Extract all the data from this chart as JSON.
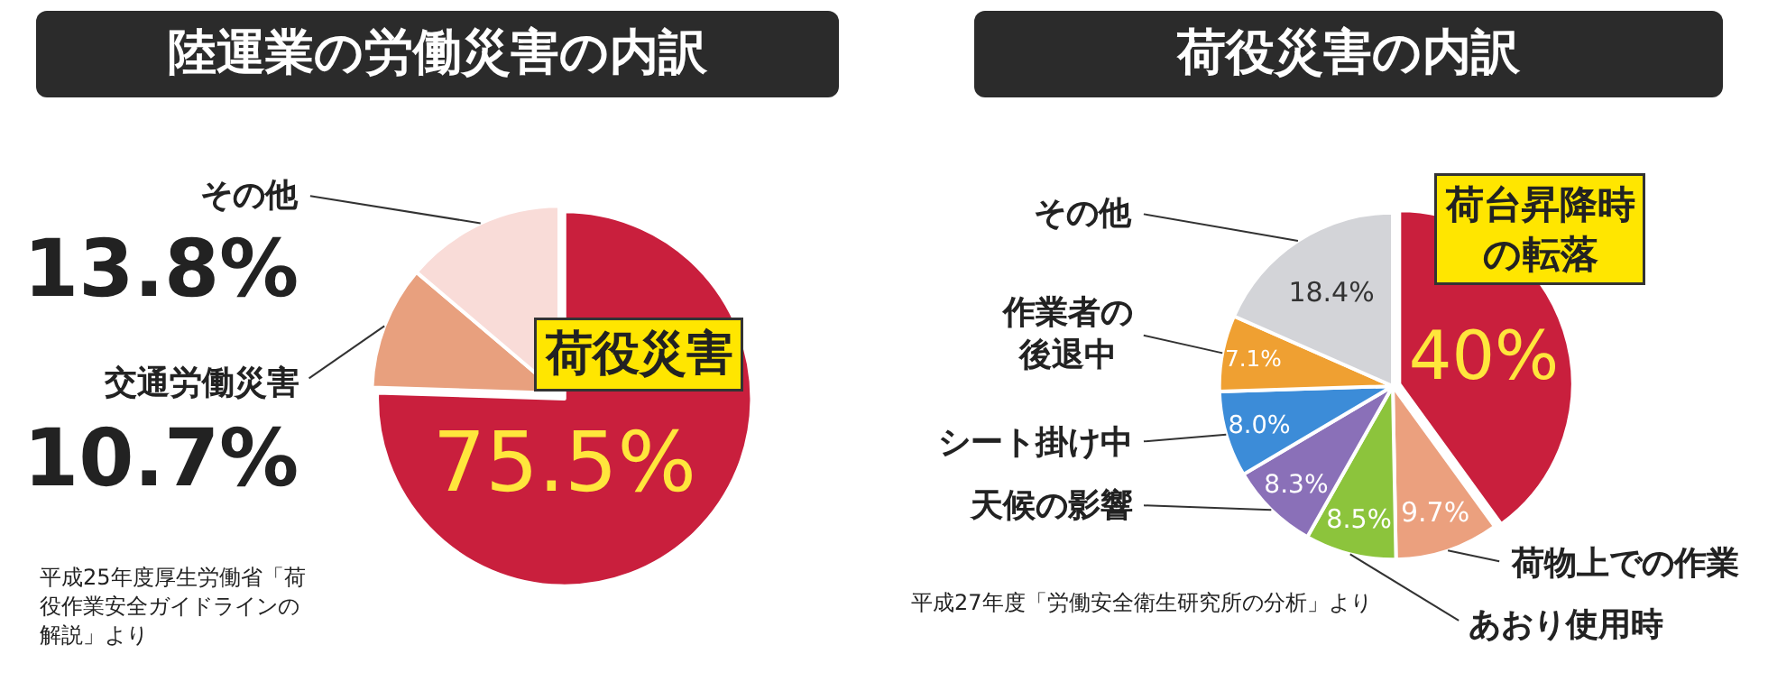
{
  "chart_data": [
    {
      "type": "pie",
      "title": "陸運業の労働災害の内訳",
      "categories": [
        "荷役災害",
        "交通労働災害",
        "その他"
      ],
      "values": [
        75.5,
        10.7,
        13.8
      ],
      "colors": [
        "#c91f3d",
        "#e8a07e",
        "#f9dcd8"
      ],
      "value_labels": [
        "75.5%",
        "10.7%",
        "13.8%"
      ],
      "annotations": [
        "平成25年度厚生労働省「荷役作業安全ガイドラインの解説」より"
      ]
    },
    {
      "type": "pie",
      "title": "荷役災害の内訳",
      "categories": [
        "荷台昇降時の転落",
        "荷物上での作業",
        "あおり使用時",
        "天候の影響",
        "シート掛け中",
        "作業者の後退中",
        "その他"
      ],
      "values": [
        40,
        9.7,
        8.5,
        8.3,
        8.0,
        7.1,
        18.4
      ],
      "colors": [
        "#c91f3d",
        "#eba07e",
        "#8cc43c",
        "#8a70b8",
        "#3c8cd8",
        "#efa032",
        "#d3d4d8"
      ],
      "value_labels": [
        "40%",
        "9.7%",
        "8.5%",
        "8.3%",
        "8.0%",
        "7.1%",
        "18.4%"
      ],
      "annotations": [
        "平成27年度「労働安全衛生研究所の分析」より"
      ]
    }
  ]
}
